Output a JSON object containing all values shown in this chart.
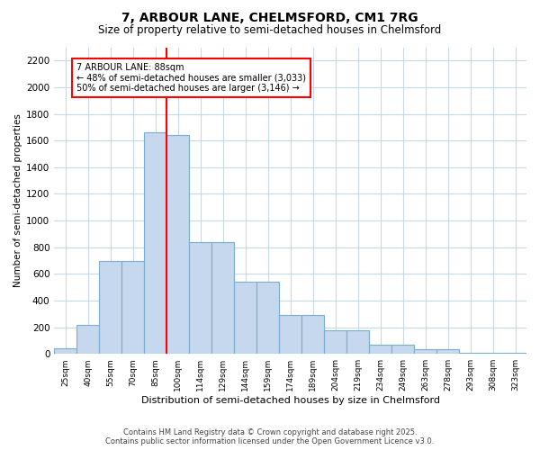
{
  "title": "7, ARBOUR LANE, CHELMSFORD, CM1 7RG",
  "subtitle": "Size of property relative to semi-detached houses in Chelmsford",
  "xlabel": "Distribution of semi-detached houses by size in Chelmsford",
  "ylabel": "Number of semi-detached properties",
  "categories": [
    "25sqm",
    "40sqm",
    "55sqm",
    "70sqm",
    "85sqm",
    "100sqm",
    "114sqm",
    "129sqm",
    "144sqm",
    "159sqm",
    "174sqm",
    "189sqm",
    "204sqm",
    "219sqm",
    "234sqm",
    "249sqm",
    "263sqm",
    "278sqm",
    "293sqm",
    "308sqm",
    "323sqm"
  ],
  "values": [
    40,
    220,
    700,
    700,
    1660,
    1640,
    840,
    840,
    540,
    540,
    290,
    290,
    180,
    180,
    70,
    70,
    35,
    35,
    10,
    10,
    10
  ],
  "bar_color": "#c5d8ed",
  "bar_edge_color": "#7aaed0",
  "vline_x_idx": 4.5,
  "vline_color": "red",
  "annotation_title": "7 ARBOUR LANE: 88sqm",
  "annotation_line1": "← 48% of semi-detached houses are smaller (3,033)",
  "annotation_line2": "50% of semi-detached houses are larger (3,146) →",
  "ylim": [
    0,
    2300
  ],
  "yticks": [
    0,
    200,
    400,
    600,
    800,
    1000,
    1200,
    1400,
    1600,
    1800,
    2000,
    2200
  ],
  "footer_line1": "Contains HM Land Registry data © Crown copyright and database right 2025.",
  "footer_line2": "Contains public sector information licensed under the Open Government Licence v3.0.",
  "background_color": "#ffffff",
  "grid_color": "#c8d8e8"
}
